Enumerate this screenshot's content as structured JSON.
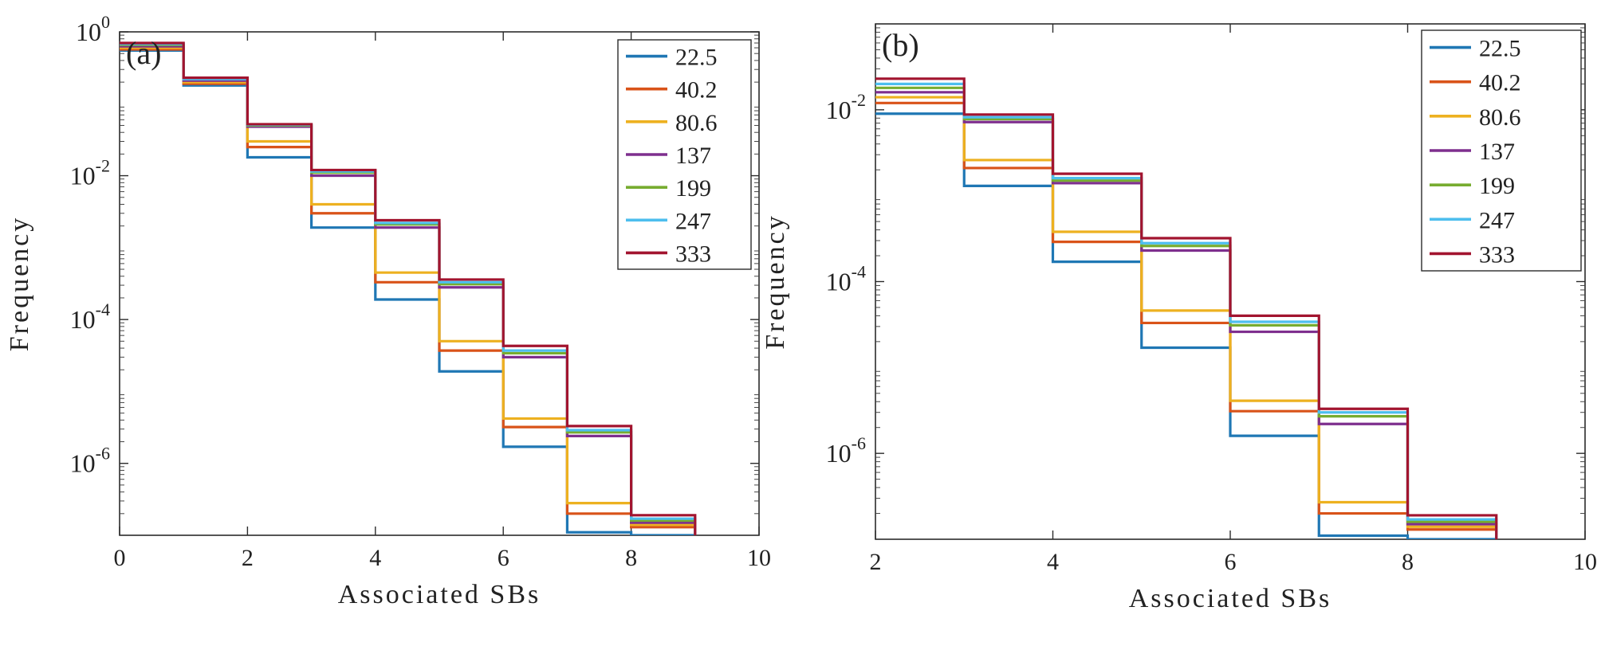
{
  "figure_labels": [
    "(a)",
    "(b)"
  ],
  "chart_data": [
    {
      "type": "line",
      "step": "stairs",
      "panel_label": "(a)",
      "title": "",
      "xlabel": "Associated SBs",
      "ylabel": "Frequency",
      "xlim": [
        0,
        10
      ],
      "ylim": [
        1e-07,
        1
      ],
      "yscale": "log",
      "xticks": [
        "0",
        "2",
        "4",
        "6",
        "8",
        "10"
      ],
      "yticks": [
        {
          "value": 1,
          "base": "10",
          "exp": "0"
        },
        {
          "value": 0.01,
          "base": "10",
          "exp": "-2"
        },
        {
          "value": 0.0001,
          "base": "10",
          "exp": "-4"
        },
        {
          "value": 1e-06,
          "base": "10",
          "exp": "-6"
        }
      ],
      "legend_position": "top-right",
      "x": [
        0,
        1,
        2,
        3,
        4,
        5,
        6,
        7,
        8
      ],
      "series": [
        {
          "name": "22.5",
          "color": "#1f77b4",
          "values": [
            0.55,
            0.18,
            0.018,
            0.0019,
            0.00019,
            1.9e-05,
            1.7e-06,
            1.1e-07,
            1e-07
          ]
        },
        {
          "name": "40.2",
          "color": "#d95319",
          "values": [
            0.57,
            0.19,
            0.025,
            0.003,
            0.00033,
            3.7e-05,
            3.2e-06,
            2e-07,
            1.3e-07
          ]
        },
        {
          "name": "80.6",
          "color": "#edb120",
          "values": [
            0.6,
            0.2,
            0.03,
            0.004,
            0.00045,
            5e-05,
            4.2e-06,
            2.8e-07,
            1.4e-07
          ]
        },
        {
          "name": "137",
          "color": "#7e2f8e",
          "values": [
            0.63,
            0.21,
            0.048,
            0.01,
            0.0019,
            0.00028,
            3e-05,
            2.4e-06,
            1.5e-07
          ]
        },
        {
          "name": "199",
          "color": "#77ac30",
          "values": [
            0.66,
            0.22,
            0.05,
            0.011,
            0.0021,
            0.00031,
            3.4e-05,
            2.7e-06,
            1.6e-07
          ]
        },
        {
          "name": "247",
          "color": "#4dbeee",
          "values": [
            0.68,
            0.22,
            0.051,
            0.0115,
            0.0022,
            0.00033,
            3.7e-05,
            2.9e-06,
            1.7e-07
          ]
        },
        {
          "name": "333",
          "color": "#a2142f",
          "values": [
            0.7,
            0.23,
            0.052,
            0.012,
            0.0024,
            0.00036,
            4.3e-05,
            3.3e-06,
            1.9e-07
          ]
        }
      ]
    },
    {
      "type": "line",
      "step": "stairs",
      "panel_label": "(b)",
      "title": "",
      "xlabel": "Associated SBs",
      "ylabel": "Frequency",
      "xlim": [
        2,
        10
      ],
      "ylim": [
        1e-07,
        0.1
      ],
      "yscale": "log",
      "xticks": [
        "2",
        "4",
        "6",
        "8",
        "10"
      ],
      "yticks": [
        {
          "value": 0.01,
          "base": "10",
          "exp": "-2"
        },
        {
          "value": 0.0001,
          "base": "10",
          "exp": "-4"
        },
        {
          "value": 1e-06,
          "base": "10",
          "exp": "-6"
        }
      ],
      "legend_position": "top-right",
      "x": [
        2,
        3,
        4,
        5,
        6,
        7,
        8
      ],
      "series": [
        {
          "name": "22.5",
          "color": "#1f77b4",
          "values": [
            0.009,
            0.0013,
            0.00017,
            1.7e-05,
            1.6e-06,
            1.1e-07,
            1e-07
          ]
        },
        {
          "name": "40.2",
          "color": "#d95319",
          "values": [
            0.012,
            0.0021,
            0.00029,
            3.3e-05,
            3.1e-06,
            2e-07,
            1.3e-07
          ]
        },
        {
          "name": "80.6",
          "color": "#edb120",
          "values": [
            0.014,
            0.0026,
            0.00038,
            4.6e-05,
            4.1e-06,
            2.7e-07,
            1.4e-07
          ]
        },
        {
          "name": "137",
          "color": "#7e2f8e",
          "values": [
            0.016,
            0.0072,
            0.0014,
            0.00023,
            2.6e-05,
            2.2e-06,
            1.5e-07
          ]
        },
        {
          "name": "199",
          "color": "#77ac30",
          "values": [
            0.018,
            0.0078,
            0.0015,
            0.00026,
            3.1e-05,
            2.7e-06,
            1.6e-07
          ]
        },
        {
          "name": "247",
          "color": "#4dbeee",
          "values": [
            0.02,
            0.0082,
            0.0016,
            0.00028,
            3.4e-05,
            3e-06,
            1.7e-07
          ]
        },
        {
          "name": "333",
          "color": "#a2142f",
          "values": [
            0.023,
            0.0088,
            0.0018,
            0.00032,
            4e-05,
            3.3e-06,
            1.9e-07
          ]
        }
      ]
    }
  ]
}
